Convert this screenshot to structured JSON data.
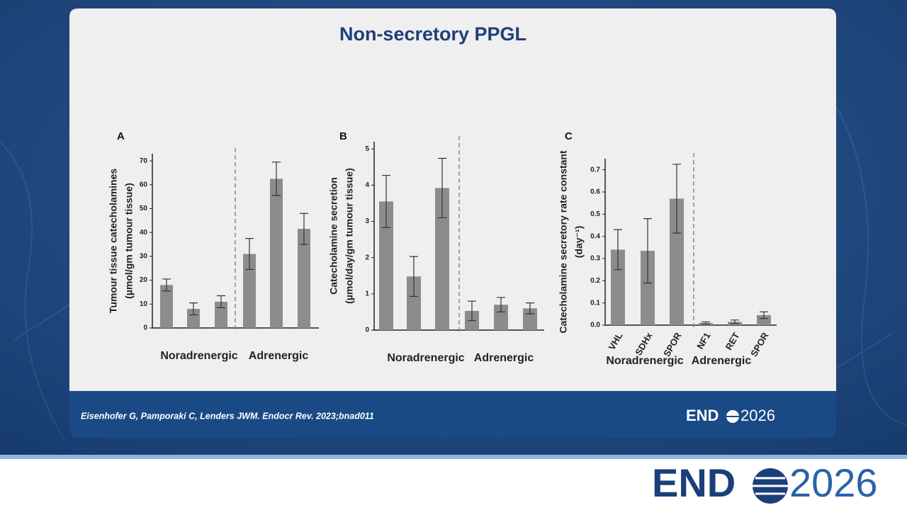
{
  "slide": {
    "title": "Non-secretory PPGL",
    "citation": "Eisenhofer G, Pamporaki C, Lenders JWM.  Endocr Rev. 2023;bnad011",
    "logo": {
      "left": "END",
      "right": "2026"
    }
  },
  "chart_data": [
    {
      "type": "bar",
      "panel": "A",
      "ylabel": [
        "Tumour tissue catecholamines",
        "(µmol/gm tumour tissue)"
      ],
      "categories": [
        null,
        null,
        null,
        null,
        null,
        null
      ],
      "values": [
        18,
        8,
        11,
        31,
        62.5,
        41.5
      ],
      "errors": [
        2.5,
        2.5,
        2.5,
        6.5,
        7,
        6.5
      ],
      "groups": [
        "Noradrenergic",
        "Adrenergic"
      ],
      "color": "#8c8c8c",
      "ylim": [
        0,
        73
      ],
      "yticks": [
        0,
        10,
        20,
        30,
        40,
        50,
        60,
        70
      ]
    },
    {
      "type": "bar",
      "panel": "B",
      "ylabel": [
        "Catecholamine  secretion",
        "(µmol/day/gm tumour tissue)"
      ],
      "categories": [
        null,
        null,
        null,
        null,
        null,
        null
      ],
      "values": [
        3.55,
        1.48,
        3.92,
        0.53,
        0.7,
        0.6
      ],
      "errors": [
        0.72,
        0.55,
        0.82,
        0.27,
        0.2,
        0.15
      ],
      "groups": [
        "Noradrenergic",
        "Adrenergic"
      ],
      "color": "#8c8c8c",
      "ylim": [
        0,
        5.2
      ],
      "yticks": [
        0,
        1,
        2,
        3,
        4,
        5
      ]
    },
    {
      "type": "bar",
      "panel": "C",
      "ylabel": [
        "Catecholamine secretory rate constant",
        "(day⁻¹)"
      ],
      "categories": [
        "VHL",
        "SDHx",
        "SPOR",
        "NF1",
        "RET",
        "SPOR"
      ],
      "values": [
        0.34,
        0.335,
        0.57,
        0.01,
        0.015,
        0.045
      ],
      "errors": [
        0.09,
        0.145,
        0.155,
        0.005,
        0.008,
        0.015
      ],
      "groups": [
        "Noradrenergic",
        "Adrenergic"
      ],
      "color": "#8c8c8c",
      "ylim": [
        0,
        0.75
      ],
      "yticks": [
        {
          "value": 0,
          "label": "0.0"
        },
        0.1,
        0.2,
        0.3,
        0.4,
        0.5,
        0.6,
        0.7
      ]
    }
  ]
}
